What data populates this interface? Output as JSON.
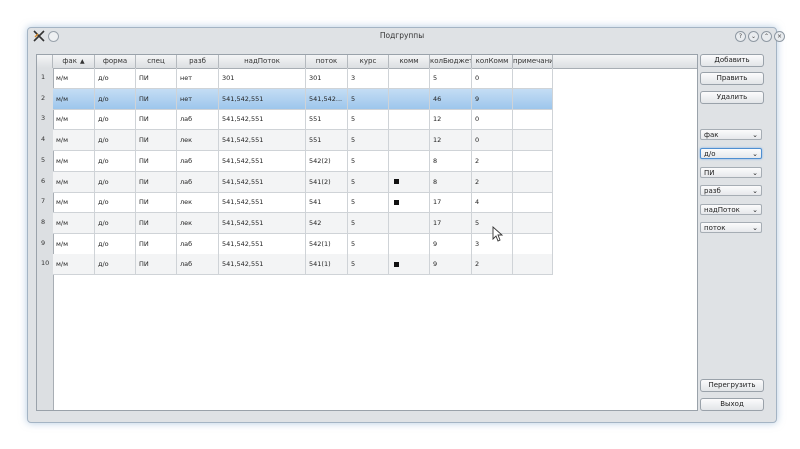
{
  "window": {
    "title": "Подгруппы"
  },
  "table": {
    "columns": [
      "фак",
      "форма",
      "спец",
      "разб",
      "надПоток",
      "поток",
      "курс",
      "комм",
      "колБюджет",
      "колКомм",
      "примечание"
    ],
    "rows": [
      {
        "num": "1",
        "fak": "м/м",
        "forma": "д/о",
        "spec": "ПИ",
        "razb": "нет",
        "nadpotok": "301",
        "potok": "301",
        "kurs": "3",
        "komm": false,
        "budzhet": "5",
        "kolkomm": "0",
        "prim": ""
      },
      {
        "num": "2",
        "fak": "м/м",
        "forma": "д/о",
        "spec": "ПИ",
        "razb": "нет",
        "nadpotok": "541,542,551",
        "potok": "541,542...",
        "kurs": "5",
        "komm": false,
        "budzhet": "46",
        "kolkomm": "9",
        "prim": ""
      },
      {
        "num": "3",
        "fak": "м/м",
        "forma": "д/о",
        "spec": "ПИ",
        "razb": "лаб",
        "nadpotok": "541,542,551",
        "potok": "551",
        "kurs": "5",
        "komm": false,
        "budzhet": "12",
        "kolkomm": "0",
        "prim": ""
      },
      {
        "num": "4",
        "fak": "м/м",
        "forma": "д/о",
        "spec": "ПИ",
        "razb": "лек",
        "nadpotok": "541,542,551",
        "potok": "551",
        "kurs": "5",
        "komm": false,
        "budzhet": "12",
        "kolkomm": "0",
        "prim": ""
      },
      {
        "num": "5",
        "fak": "м/м",
        "forma": "д/о",
        "spec": "ПИ",
        "razb": "лаб",
        "nadpotok": "541,542,551",
        "potok": "542(2)",
        "kurs": "5",
        "komm": false,
        "budzhet": "8",
        "kolkomm": "2",
        "prim": ""
      },
      {
        "num": "6",
        "fak": "м/м",
        "forma": "д/о",
        "spec": "ПИ",
        "razb": "лаб",
        "nadpotok": "541,542,551",
        "potok": "541(2)",
        "kurs": "5",
        "komm": true,
        "budzhet": "8",
        "kolkomm": "2",
        "prim": ""
      },
      {
        "num": "7",
        "fak": "м/м",
        "forma": "д/о",
        "spec": "ПИ",
        "razb": "лек",
        "nadpotok": "541,542,551",
        "potok": "541",
        "kurs": "5",
        "komm": true,
        "budzhet": "17",
        "kolkomm": "4",
        "prim": ""
      },
      {
        "num": "8",
        "fak": "м/м",
        "forma": "д/о",
        "spec": "ПИ",
        "razb": "лек",
        "nadpotok": "541,542,551",
        "potok": "542",
        "kurs": "5",
        "komm": false,
        "budzhet": "17",
        "kolkomm": "5",
        "prim": ""
      },
      {
        "num": "9",
        "fak": "м/м",
        "forma": "д/о",
        "spec": "ПИ",
        "razb": "лаб",
        "nadpotok": "541,542,551",
        "potok": "542(1)",
        "kurs": "5",
        "komm": false,
        "budzhet": "9",
        "kolkomm": "3",
        "prim": ""
      },
      {
        "num": "10",
        "fak": "м/м",
        "forma": "д/о",
        "spec": "ПИ",
        "razb": "лаб",
        "nadpotok": "541,542,551",
        "potok": "541(1)",
        "kurs": "5",
        "komm": true,
        "budzhet": "9",
        "kolkomm": "2",
        "prim": ""
      }
    ],
    "selected_row": 2
  },
  "buttons": {
    "add": "Добавить",
    "edit": "Править",
    "delete": "Удалить",
    "reload": "Перегрузить",
    "exit": "Выход"
  },
  "filters": [
    "фак",
    "д/о",
    "ПИ",
    "разб",
    "надПоток",
    "поток"
  ],
  "colors": {
    "selection": "#9dc6ec",
    "window_glow": "#78a0c8"
  }
}
